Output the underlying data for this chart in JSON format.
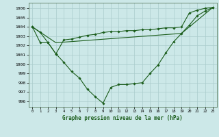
{
  "title": "Graphe pression niveau de la mer (hPa)",
  "background_color": "#cce8e8",
  "grid_color": "#aacccc",
  "line_color": "#1a5c1a",
  "xlim": [
    -0.5,
    23.5
  ],
  "ylim": [
    995.4,
    1006.6
  ],
  "yticks": [
    996,
    997,
    998,
    999,
    1000,
    1001,
    1002,
    1003,
    1004,
    1005,
    1006
  ],
  "xticks": [
    0,
    1,
    2,
    3,
    4,
    5,
    6,
    7,
    8,
    9,
    10,
    11,
    12,
    13,
    14,
    15,
    16,
    17,
    18,
    19,
    20,
    21,
    22,
    23
  ],
  "series1": [
    1004.0,
    1003.4,
    1002.3,
    1001.1,
    1000.2,
    999.2,
    998.5,
    997.3,
    996.5,
    995.8,
    997.5,
    997.8,
    997.8,
    997.9,
    998.0,
    999.0,
    999.9,
    1001.2,
    1002.4,
    1003.3,
    1004.2,
    1005.2,
    1005.7,
    1006.1
  ],
  "series2": [
    1004.0,
    1002.3,
    1002.3,
    1001.1,
    1002.6,
    1002.7,
    1002.9,
    1003.1,
    1003.2,
    1003.4,
    1003.5,
    1003.5,
    1003.6,
    1003.6,
    1003.7,
    1003.7,
    1003.8,
    1003.9,
    1003.9,
    1004.0,
    1005.5,
    1005.8,
    1006.0,
    1006.1
  ],
  "series3_x": [
    0,
    3,
    19,
    23
  ],
  "series3_y": [
    1004.0,
    1002.3,
    1003.3,
    1006.1
  ]
}
